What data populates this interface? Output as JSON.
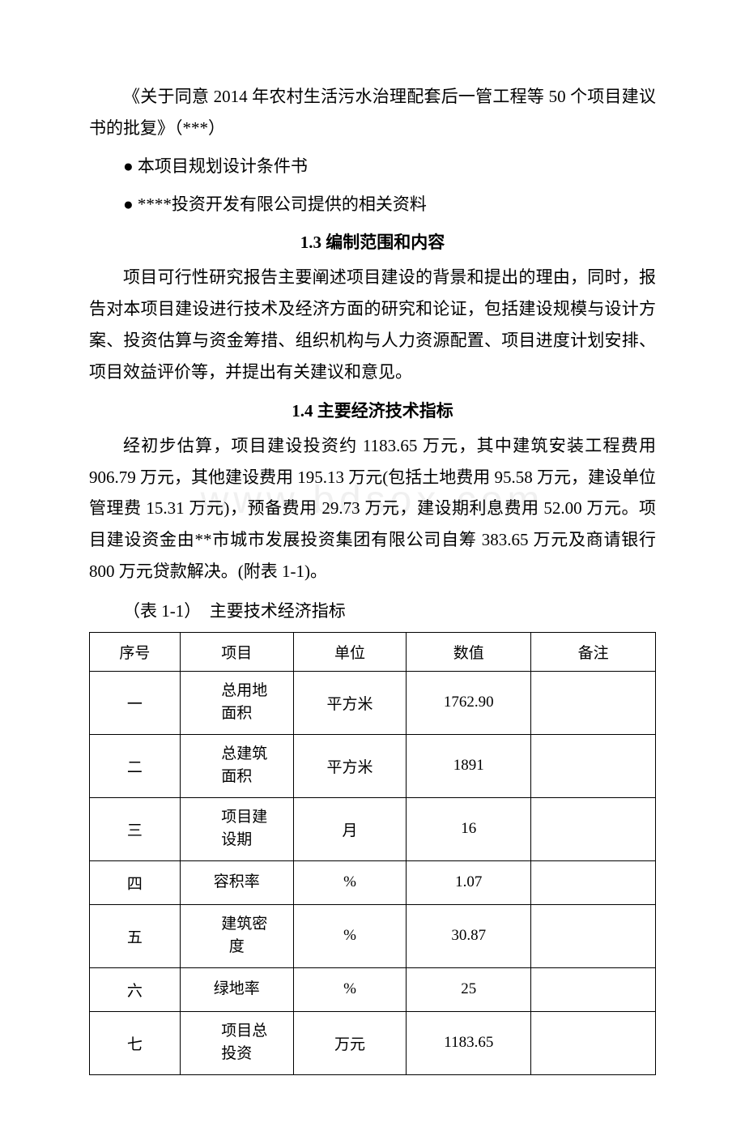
{
  "para1": "《关于同意 2014 年农村生活污水治理配套后一管工程等 50 个项目建议书的批复》（***）",
  "bullet1": "● 本项目规划设计条件书",
  "bullet2": "● ****投资开发有限公司提供的相关资料",
  "heading1": "1.3 编制范围和内容",
  "para2": "项目可行性研究报告主要阐述项目建设的背景和提出的理由，同时，报告对本项目建设进行技术及经济方面的研究和论证，包括建设规模与设计方案、投资估算与资金筹措、组织机构与人力资源配置、项目进度计划安排、项目效益评价等，并提出有关建议和意见。",
  "heading2": "1.4 主要经济技术指标",
  "para3": "经初步估算，项目建设投资约 1183.65 万元，其中建筑安装工程费用 906.79 万元，其他建设费用 195.13 万元(包括土地费用 95.58 万元，建设单位管理费 15.31 万元)，预备费用 29.73 万元，建设期利息费用 52.00 万元。项目建设资金由**市城市发展投资集团有限公司自筹 383.65 万元及商请银行 800 万元贷款解决。(附表 1-1)。",
  "tableCaption": "（表 1-1）　主要技术经济指标",
  "watermark": "www.bdsox.com",
  "table": {
    "columns": [
      "序号",
      "项目",
      "单位",
      "数值",
      "备注"
    ],
    "colWidths": [
      "16%",
      "20%",
      "20%",
      "22%",
      "22%"
    ],
    "rows": [
      {
        "seq": "一",
        "item": "总用地面积",
        "unit": "平方米",
        "value": "1762.90",
        "note": ""
      },
      {
        "seq": "二",
        "item": "总建筑面积",
        "unit": "平方米",
        "value": "1891",
        "note": ""
      },
      {
        "seq": "三",
        "item": "项目建设期",
        "unit": "月",
        "value": "16",
        "note": ""
      },
      {
        "seq": "四",
        "item": "容积率",
        "unit": "%",
        "value": "1.07",
        "note": ""
      },
      {
        "seq": "五",
        "item": "建筑密度",
        "unit": "%",
        "value": "30.87",
        "note": ""
      },
      {
        "seq": "六",
        "item": "绿地率",
        "unit": "%",
        "value": "25",
        "note": ""
      },
      {
        "seq": "七",
        "item": "项目总投资",
        "unit": "万元",
        "value": "1183.65",
        "note": ""
      }
    ]
  }
}
